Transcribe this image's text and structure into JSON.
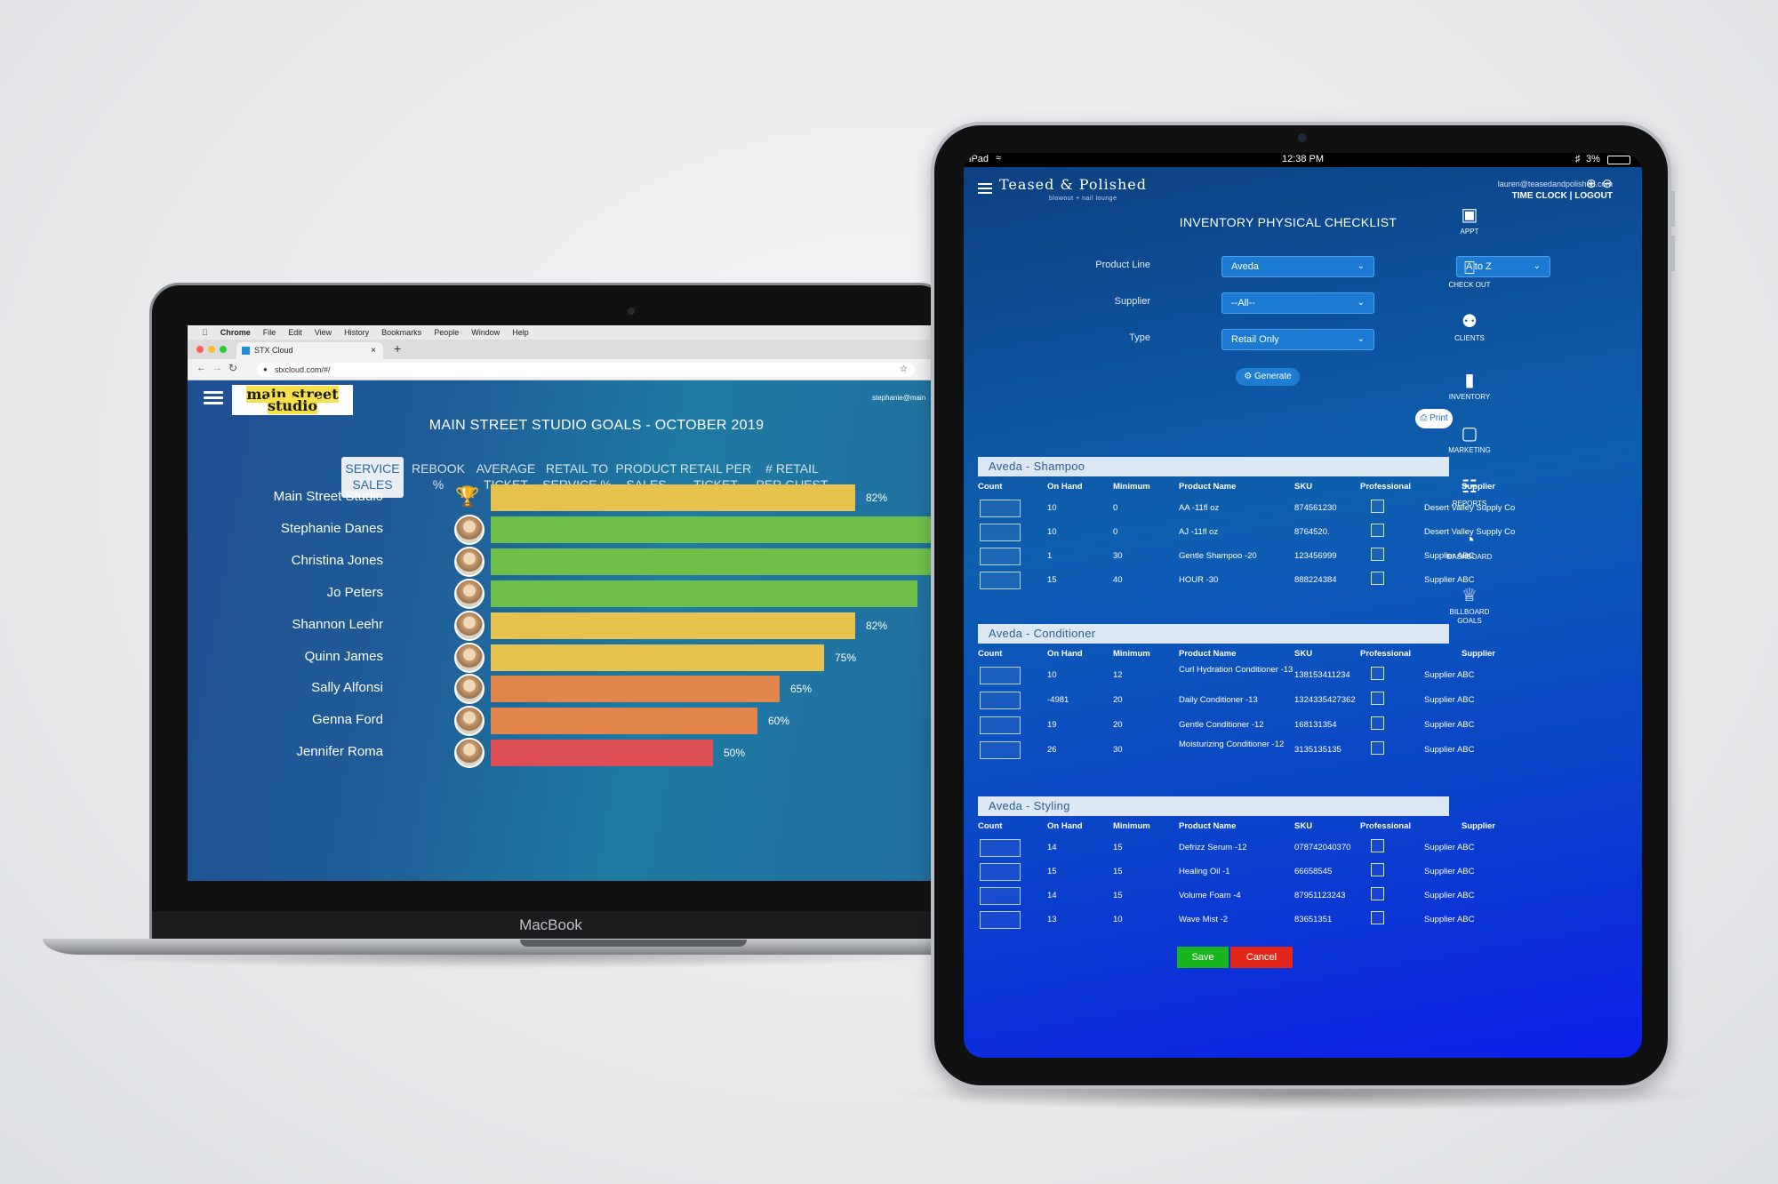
{
  "macbook": {
    "label": "MacBook",
    "menubar": [
      "Chrome",
      "File",
      "Edit",
      "View",
      "History",
      "Bookmarks",
      "People",
      "Window",
      "Help"
    ],
    "tab_title": "STX Cloud",
    "url": "stxcloud.com/#/",
    "app": {
      "logo_line1": "main street",
      "logo_line2": "studio",
      "user": "stephanie@main",
      "title": "MAIN STREET STUDIO GOALS  - OCTOBER 2019",
      "tabs": [
        {
          "l1": "SERVICE",
          "l2": "SALES"
        },
        {
          "l1": "REBOOK",
          "l2": "%"
        },
        {
          "l1": "AVERAGE",
          "l2": "TICKET"
        },
        {
          "l1": "RETAIL TO",
          "l2": "SERVICE %"
        },
        {
          "l1": "PRODUCT",
          "l2": "SALES"
        },
        {
          "l1": "RETAIL PER",
          "l2": "TICKET"
        },
        {
          "l1": "# RETAIL",
          "l2": "PER GUEST"
        }
      ],
      "colors": {
        "yellow": "#e6c24c",
        "green": "#6fbf4b",
        "orange": "#e2854a",
        "red": "#de4f55"
      }
    }
  },
  "chart_data": {
    "type": "bar",
    "categories": [
      "Main Street Studio",
      "Stephanie Danes",
      "Christina Jones",
      "Jo Peters",
      "Shannon Leehr",
      "Quinn James",
      "Sally Alfonsi",
      "Genna Ford",
      "Jennifer Roma"
    ],
    "values": [
      82,
      100,
      100,
      96,
      82,
      75,
      65,
      60,
      50
    ],
    "labels": [
      "82%",
      "",
      "",
      "",
      "82%",
      "75%",
      "65%",
      "60%",
      "50%"
    ],
    "bar_colors": [
      "yellow",
      "green",
      "green",
      "green",
      "yellow",
      "yellow",
      "orange",
      "orange",
      "red"
    ],
    "title": "MAIN STREET STUDIO GOALS  - OCTOBER 2019",
    "xlabel": "",
    "ylabel": "",
    "xlim": [
      0,
      100
    ]
  },
  "ipad": {
    "status": {
      "left": "iPad",
      "time": "12:38 PM",
      "battery": "3%"
    },
    "brand": "Teased & Polished",
    "brand_sub": "blowout + nail lounge",
    "email": "lauren@teasedandpolished.com",
    "time_clock": "TIME CLOCK",
    "sep": "|",
    "logout": "LOGOUT",
    "title": "INVENTORY  PHYSICAL  CHECKLIST",
    "filters": {
      "product_line_label": "Product Line",
      "product_line_value": "Aveda",
      "supplier_label": "Supplier",
      "supplier_value": "--All--",
      "type_label": "Type",
      "type_value": "Retail Only",
      "sort_value": "A to Z"
    },
    "generate": "Generate",
    "print": "Print",
    "columns": [
      "Count",
      "On Hand",
      "Minimum",
      "Product Name",
      "SKU",
      "Professional",
      "Supplier"
    ],
    "sections": [
      {
        "title": "Aveda - Shampoo",
        "rows": [
          {
            "onhand": "10",
            "min": "0",
            "name": "AA -11fl oz",
            "sku": "874561230",
            "supplier": "Desert Valley Supply Co"
          },
          {
            "onhand": "10",
            "min": "0",
            "name": "AJ -11fl oz",
            "sku": "8764520.",
            "supplier": "Desert Valley Supply Co"
          },
          {
            "onhand": "1",
            "min": "30",
            "name": "Gentle Shampoo -20",
            "sku": "123456999",
            "supplier": "Supplier ABC"
          },
          {
            "onhand": "15",
            "min": "40",
            "name": "HOUR -30",
            "sku": "888224384",
            "supplier": "Supplier ABC"
          }
        ]
      },
      {
        "title": "Aveda - Conditioner",
        "rows": [
          {
            "onhand": "10",
            "min": "12",
            "name": "Curl Hydration Conditioner -13",
            "sku": "138153411234",
            "supplier": "Supplier ABC"
          },
          {
            "onhand": "-4981",
            "min": "20",
            "name": "Daily Conditioner -13",
            "sku": "1324335427362",
            "supplier": "Supplier ABC"
          },
          {
            "onhand": "19",
            "min": "20",
            "name": "Gentle Conditioner -12",
            "sku": "168131354",
            "supplier": "Supplier ABC"
          },
          {
            "onhand": "26",
            "min": "30",
            "name": "Moisturizing Conditioner -12",
            "sku": "3135135135",
            "supplier": "Supplier ABC"
          }
        ]
      },
      {
        "title": "Aveda - Styling",
        "rows": [
          {
            "onhand": "14",
            "min": "15",
            "name": "Defrizz Serum -12",
            "sku": "078742040370",
            "supplier": "Supplier ABC"
          },
          {
            "onhand": "15",
            "min": "15",
            "name": "Healing Oil -1",
            "sku": "66658545",
            "supplier": "Supplier ABC"
          },
          {
            "onhand": "14",
            "min": "15",
            "name": "Volume Foam -4",
            "sku": "87951123243",
            "supplier": "Supplier ABC"
          },
          {
            "onhand": "13",
            "min": "10",
            "name": "Wave Mist -2",
            "sku": "83651351",
            "supplier": "Supplier ABC"
          }
        ]
      }
    ],
    "sidebar": [
      {
        "label": "APPT",
        "icon": "calendar-icon"
      },
      {
        "label": "CHECK OUT",
        "icon": "register-icon"
      },
      {
        "label": "CLIENTS",
        "icon": "people-icon"
      },
      {
        "label": "INVENTORY",
        "icon": "bottle-icon"
      },
      {
        "label": "MARKETING",
        "icon": "chat-icon"
      },
      {
        "label": "REPORTS",
        "icon": "chart-icon"
      },
      {
        "label": "DASHBOARD",
        "icon": "gauge-icon"
      },
      {
        "label": "BILLBOARD GOALS",
        "icon": "trophy-icon"
      }
    ],
    "save": "Save",
    "cancel": "Cancel"
  }
}
